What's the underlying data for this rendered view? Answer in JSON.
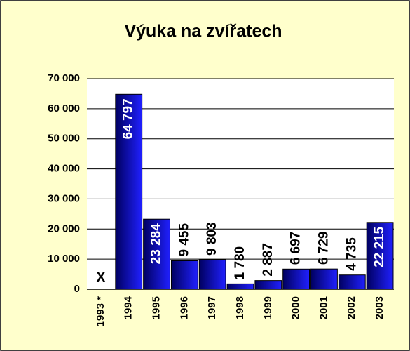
{
  "chart_data": {
    "type": "bar",
    "title": "Výuka na zvířatech",
    "categories": [
      "1993 *",
      "1994",
      "1995",
      "1996",
      "1997",
      "1998",
      "1999",
      "2000",
      "2001",
      "2002",
      "2003"
    ],
    "values": [
      null,
      64797,
      23284,
      9455,
      9803,
      1780,
      2887,
      6697,
      6729,
      4735,
      22215
    ],
    "value_labels": [
      "X",
      "64 797",
      "23 284",
      "9 455",
      "9 803",
      "1 780",
      "2 887",
      "6 697",
      "6 729",
      "4 735",
      "22 215"
    ],
    "color": "#2020ff",
    "ylim": [
      0,
      70000
    ],
    "yticks": [
      {
        "value": 0,
        "label": "0"
      },
      {
        "value": 10000,
        "label": "10 000"
      },
      {
        "value": 20000,
        "label": "20 000"
      },
      {
        "value": 30000,
        "label": "30 000"
      },
      {
        "value": 40000,
        "label": "40 000"
      },
      {
        "value": 50000,
        "label": "50 000"
      },
      {
        "value": 60000,
        "label": "60 000"
      },
      {
        "value": 70000,
        "label": "70 000"
      }
    ],
    "grid": true
  }
}
